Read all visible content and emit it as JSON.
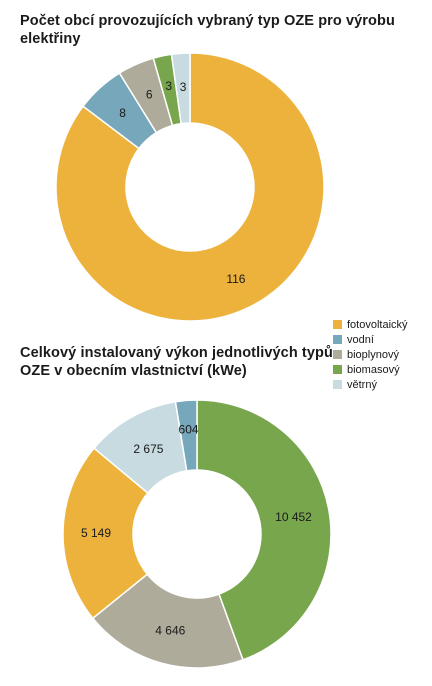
{
  "chart_data": [
    {
      "type": "pie",
      "title": "Počet obcí provozujících vybraný typ OZE pro výrobu elektřiny",
      "categories": [
        "fotovoltaický",
        "vodní",
        "bioplynový",
        "biomasový",
        "větrný"
      ],
      "values": [
        116,
        8,
        6,
        3,
        3
      ],
      "labels": [
        "116",
        "8",
        "6",
        "3",
        "3"
      ],
      "colors": [
        "#ecb23c",
        "#76a7ba",
        "#aeab9a",
        "#77a64d",
        "#c7dbe0"
      ],
      "order": [
        "fotovoltaický",
        "vodní",
        "bioplynový",
        "biomasový",
        "větrný"
      ]
    },
    {
      "type": "pie",
      "title": "Celkový instalovaný výkon jednotlivých typů OZE v obecním vlastnictví (kWe)",
      "categories": [
        "biomasový",
        "bioplynový",
        "fotovoltaický",
        "větrný",
        "vodní"
      ],
      "values": [
        10452,
        4646,
        5149,
        2675,
        604
      ],
      "labels": [
        "10 452",
        "4 646",
        "5 149",
        "2 675",
        "604"
      ],
      "colors": [
        "#77a64d",
        "#aeab9a",
        "#ecb23c",
        "#c7dbe0",
        "#76a7ba"
      ]
    }
  ],
  "legend": {
    "items": [
      {
        "label": "fotovoltaický",
        "color": "#ecb23c"
      },
      {
        "label": "vodní",
        "color": "#76a7ba"
      },
      {
        "label": "bioplynový",
        "color": "#aeab9a"
      },
      {
        "label": "biomasový",
        "color": "#77a64d"
      },
      {
        "label": "větrný",
        "color": "#c7dbe0"
      }
    ]
  }
}
